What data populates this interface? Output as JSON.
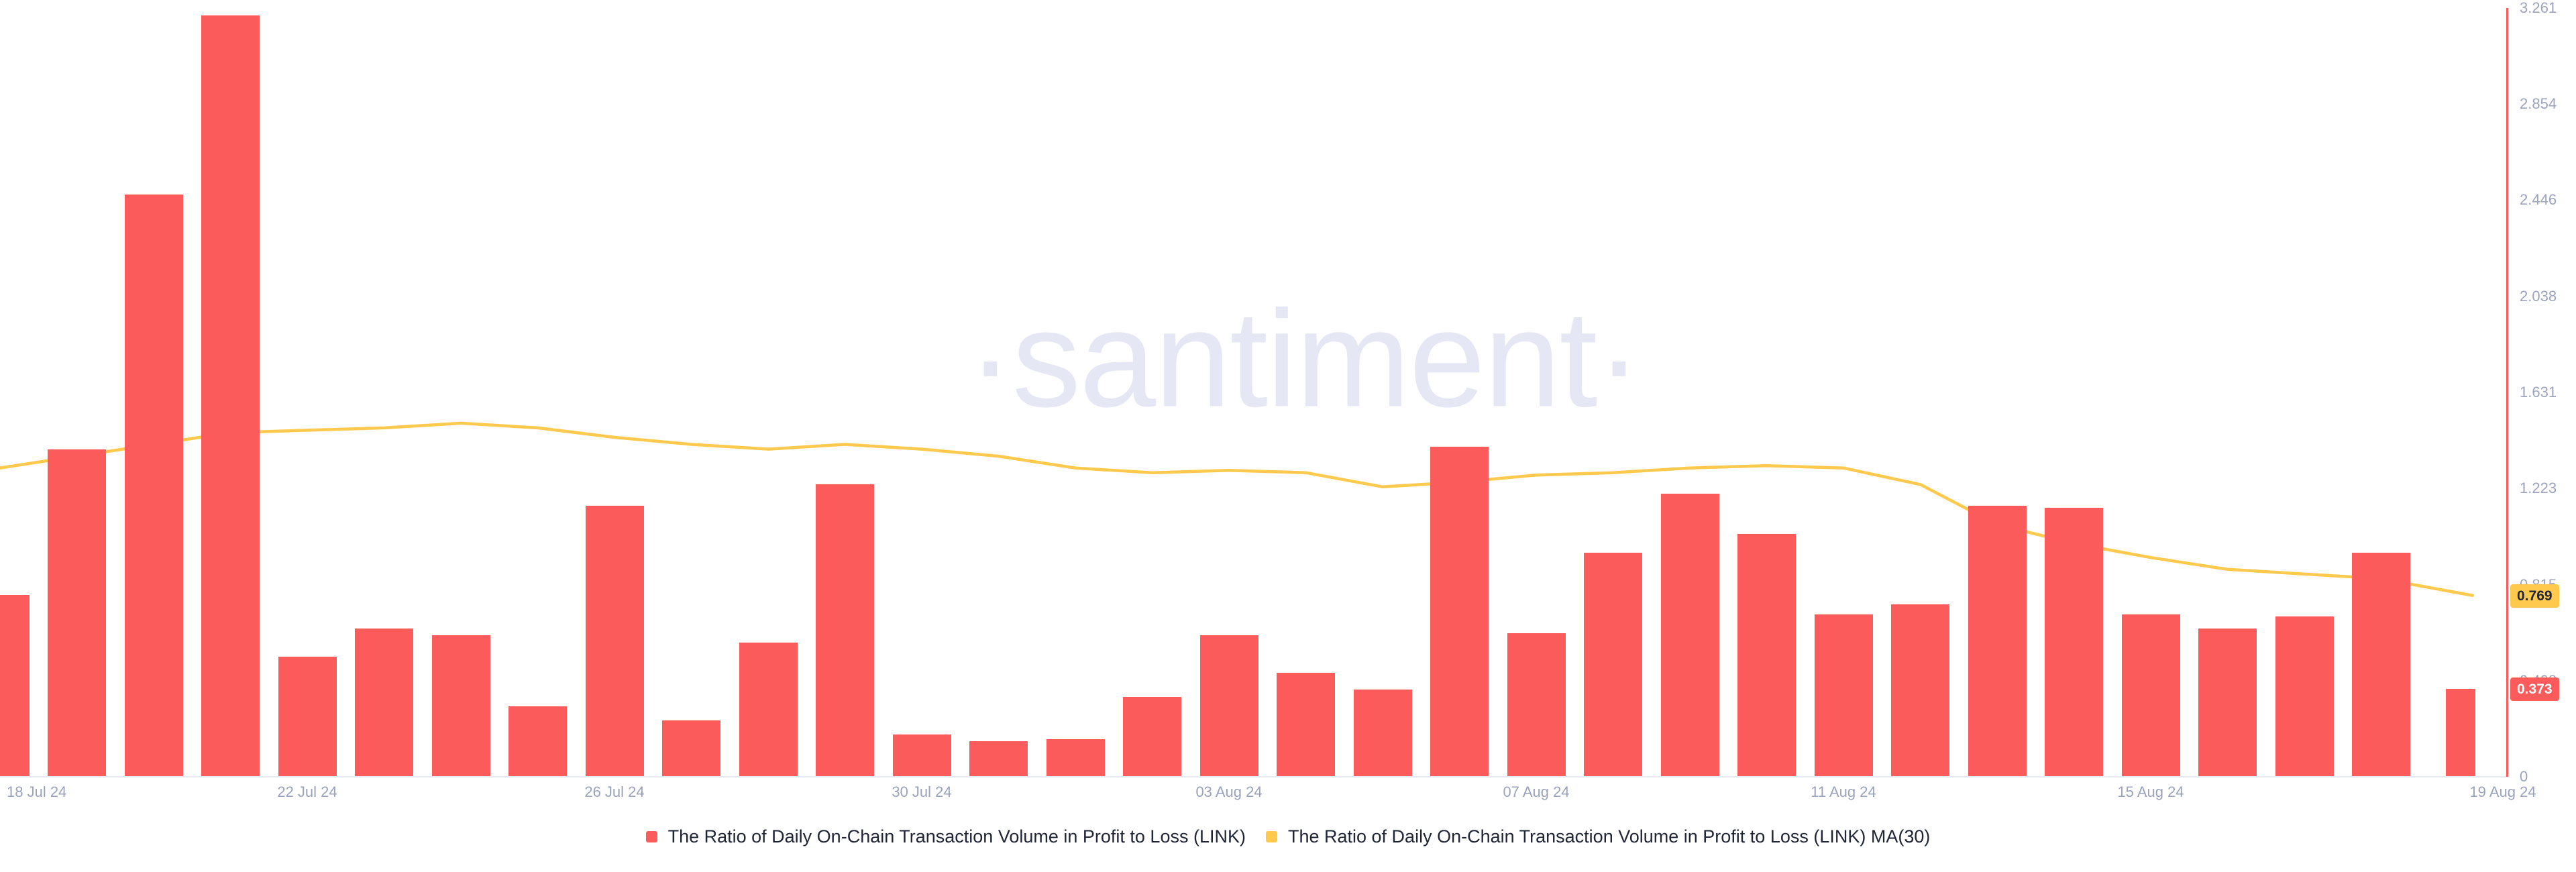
{
  "watermark": "·santiment·",
  "colors": {
    "bar_red": "#fc5b5b",
    "ma_yellow": "#ffc94d",
    "axis_text": "#9aa2be",
    "legend_text": "#1f2436",
    "watermark_text": "#e5e8f4",
    "baseline_gray": "#e8eaf2",
    "badge_ma_bg": "#ffc94d",
    "badge_ma_text": "#1f2436",
    "badge_bar_bg": "#fc5b5b",
    "badge_bar_text": "#ffffff"
  },
  "legend": {
    "items": [
      {
        "label": "The Ratio of Daily On-Chain Transaction Volume in Profit to Loss (LINK)",
        "color": "#fc5b5b"
      },
      {
        "label": "The Ratio of Daily On-Chain Transaction Volume in Profit to Loss (LINK) MA(30)",
        "color": "#ffc94d"
      }
    ]
  },
  "axis": {
    "y_tick_labels": [
      "3.261",
      "2.854",
      "2.446",
      "2.038",
      "1.631",
      "1.223",
      "0.815",
      "0.408",
      "0"
    ],
    "y_tick_values": [
      3.261,
      2.854,
      2.446,
      2.038,
      1.631,
      1.223,
      0.815,
      0.408,
      0
    ],
    "x_tick_labels": [
      "18 Jul 24",
      "22 Jul 24",
      "26 Jul 24",
      "30 Jul 24",
      "03 Aug 24",
      "07 Aug 24",
      "11 Aug 24",
      "15 Aug 24",
      "19 Aug 24"
    ],
    "x_tick_day_indices": [
      0,
      4,
      8,
      12,
      16,
      20,
      24,
      28,
      32
    ]
  },
  "badges": {
    "ma_last": {
      "label": "0.769",
      "value": 0.769
    },
    "bar_last": {
      "label": "0.373",
      "value": 0.373
    }
  },
  "chart_data": {
    "type": "bar",
    "title": "",
    "xlabel": "",
    "ylabel": "",
    "ylim": [
      0,
      3.261
    ],
    "grid": false,
    "legend_position": "bottom-center",
    "categories": [
      "18 Jul 24",
      "19 Jul 24",
      "20 Jul 24",
      "21 Jul 24",
      "22 Jul 24",
      "23 Jul 24",
      "24 Jul 24",
      "25 Jul 24",
      "26 Jul 24",
      "27 Jul 24",
      "28 Jul 24",
      "29 Jul 24",
      "30 Jul 24",
      "31 Jul 24",
      "01 Aug 24",
      "02 Aug 24",
      "03 Aug 24",
      "04 Aug 24",
      "05 Aug 24",
      "06 Aug 24",
      "07 Aug 24",
      "08 Aug 24",
      "09 Aug 24",
      "10 Aug 24",
      "11 Aug 24",
      "12 Aug 24",
      "13 Aug 24",
      "14 Aug 24",
      "15 Aug 24",
      "16 Aug 24",
      "17 Aug 24",
      "18 Aug 24",
      "19 Aug 24"
    ],
    "series": [
      {
        "name": "The Ratio of Daily On-Chain Transaction Volume in Profit to Loss (LINK)",
        "type": "bar",
        "color": "#fc5b5b",
        "values": [
          0.77,
          1.39,
          2.47,
          3.23,
          0.51,
          0.63,
          0.6,
          0.3,
          1.15,
          0.24,
          0.57,
          1.24,
          0.18,
          0.15,
          0.16,
          0.34,
          0.6,
          0.44,
          0.37,
          1.4,
          0.61,
          0.95,
          1.2,
          1.03,
          0.69,
          0.73,
          1.15,
          1.14,
          0.69,
          0.63,
          0.68,
          0.95,
          0.373
        ]
      },
      {
        "name": "The Ratio of Daily On-Chain Transaction Volume in Profit to Loss (LINK) MA(30)",
        "type": "line",
        "color": "#ffc94d",
        "values": [
          1.31,
          1.36,
          1.41,
          1.46,
          1.47,
          1.48,
          1.5,
          1.48,
          1.44,
          1.41,
          1.39,
          1.41,
          1.39,
          1.36,
          1.31,
          1.29,
          1.3,
          1.29,
          1.23,
          1.25,
          1.28,
          1.29,
          1.31,
          1.32,
          1.31,
          1.24,
          1.07,
          0.99,
          0.93,
          0.88,
          0.86,
          0.84,
          0.769
        ]
      }
    ]
  }
}
